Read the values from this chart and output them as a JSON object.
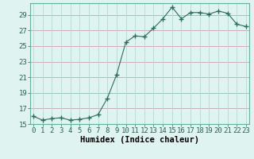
{
  "x": [
    0,
    1,
    2,
    3,
    4,
    5,
    6,
    7,
    8,
    9,
    10,
    11,
    12,
    13,
    14,
    15,
    16,
    17,
    18,
    19,
    20,
    21,
    22,
    23
  ],
  "y": [
    16.0,
    15.5,
    15.7,
    15.8,
    15.5,
    15.6,
    15.8,
    16.2,
    18.3,
    21.3,
    25.5,
    26.3,
    26.2,
    27.3,
    28.5,
    30.0,
    28.5,
    29.3,
    29.3,
    29.1,
    29.5,
    29.2,
    27.8,
    27.5
  ],
  "line_color": "#2e6b5e",
  "marker": "+",
  "marker_size": 4,
  "bg_color": "#dff4f0",
  "hgrid_color": "#c8a0a8",
  "vgrid_color": "#b8d8d0",
  "xlabel": "Humidex (Indice chaleur)",
  "ylim": [
    15,
    30.5
  ],
  "yticks": [
    15,
    17,
    19,
    21,
    23,
    25,
    27,
    29
  ],
  "xticks": [
    0,
    1,
    2,
    3,
    4,
    5,
    6,
    7,
    8,
    9,
    10,
    11,
    12,
    13,
    14,
    15,
    16,
    17,
    18,
    19,
    20,
    21,
    22,
    23
  ],
  "xlim": [
    -0.3,
    23.3
  ],
  "tick_fontsize": 6.5,
  "xlabel_fontsize": 7.5
}
